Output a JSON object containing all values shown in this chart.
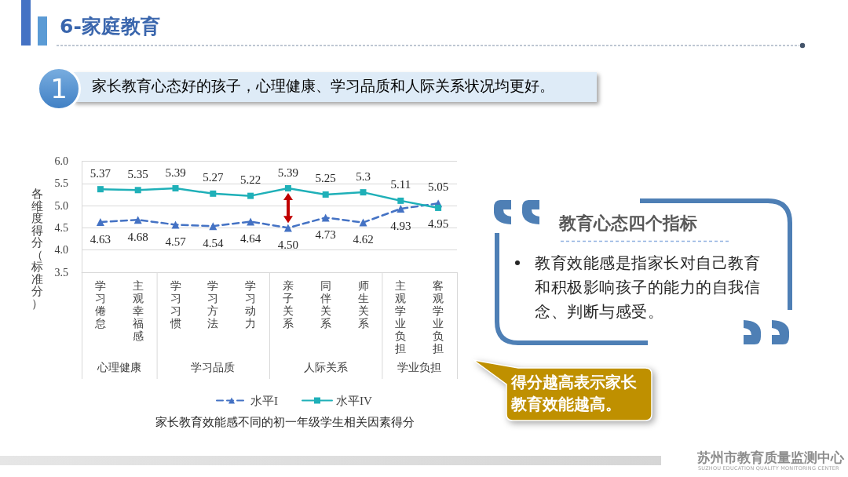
{
  "chart_data": {
    "type": "line",
    "title": "家长教育效能感不同的初一年级学生相关因素得分",
    "ylabel": "各维度得分（标准分）",
    "categories": [
      "学习倦怠",
      "主观幸福感",
      "学习习惯",
      "学习方法",
      "学习动力",
      "亲子关系",
      "同伴关系",
      "师生关系",
      "主观学业负担",
      "客观学业负担"
    ],
    "series": [
      {
        "name": "水平I",
        "color": "#4472c4",
        "marker": "triangle",
        "line_style": "dashed",
        "values": [
          4.63,
          4.68,
          4.57,
          4.54,
          4.64,
          4.5,
          4.73,
          4.62,
          4.93,
          5.05
        ],
        "value_labels": [
          "4.63",
          "4.68",
          "4.57",
          "4.54",
          "4.64",
          "4.50",
          "4.73",
          "4.62",
          "4.93",
          "5.05"
        ]
      },
      {
        "name": "水平IV",
        "color": "#1fb0b8",
        "marker": "square",
        "line_style": "solid",
        "values": [
          5.37,
          5.35,
          5.39,
          5.27,
          5.22,
          5.39,
          5.25,
          5.3,
          5.11,
          4.95
        ],
        "value_labels": [
          "5.37",
          "5.35",
          "5.39",
          "5.27",
          "5.22",
          "5.39",
          "5.25",
          "5.3",
          "5.11",
          "4.95"
        ]
      }
    ],
    "ylim": [
      3.5,
      6
    ],
    "yticks": [
      3.5,
      {
        "value": 4,
        "label": "4.0"
      },
      4.5,
      {
        "value": 5,
        "label": "5.0"
      },
      5.5,
      {
        "value": 6,
        "label": "6.0"
      }
    ],
    "grid": "y",
    "legend": "bottom",
    "annotations": [
      "6-家庭教育",
      "1",
      "家长教育心态好的孩子，心理健康、学习品质和人际关系状况均更好。",
      "教育心态四个指标",
      "教育效能感是指家长对自己教育和积极影响孩子的能力的自我信念、判断与感受。",
      "得分越高表示家长教育效能越高。",
      "心理健康",
      "学习品质",
      "人际关系",
      "学业负担",
      "苏州市教育质量监测中心",
      "SUZHOU EDUCATION QUALITY MONITORING CENTER"
    ]
  }
}
